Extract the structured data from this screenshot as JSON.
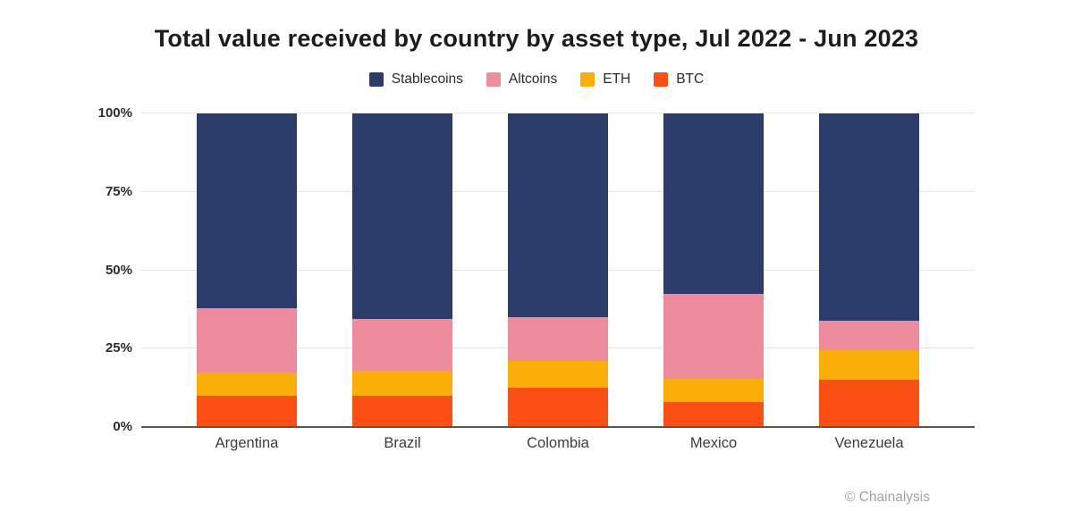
{
  "title": "Total value received by country by asset type, Jul 2022 - Jun 2023",
  "attribution": "© Chainalysis",
  "colors": {
    "stablecoins": "#2b3b6a",
    "altcoins": "#ee8c9d",
    "eth": "#fbad08",
    "btc": "#fb4f14",
    "gridline": "#e4e4e6",
    "axis": "#55565a"
  },
  "chart_data": {
    "type": "bar",
    "stacked": true,
    "title": "Total value received by country by asset type, Jul 2022 - Jun 2023",
    "categories": [
      "Argentina",
      "Brazil",
      "Colombia",
      "Mexico",
      "Venezuela"
    ],
    "series": [
      {
        "name": "Stablecoins",
        "color": "#2b3b6a",
        "values": [
          62,
          65.5,
          65,
          57.5,
          66
        ]
      },
      {
        "name": "Altcoins",
        "color": "#ee8c9d",
        "values": [
          20.5,
          16.5,
          14,
          27,
          9.5
        ]
      },
      {
        "name": "ETH",
        "color": "#fbad08",
        "values": [
          7.5,
          8,
          8.5,
          7.5,
          9.5
        ]
      },
      {
        "name": "BTC",
        "color": "#fb4f14",
        "values": [
          10,
          10,
          12.5,
          8,
          15
        ]
      }
    ],
    "stack_order_top_to_bottom": [
      "Stablecoins",
      "Altcoins",
      "ETH",
      "BTC"
    ],
    "xlabel": "",
    "ylabel": "",
    "ylim": [
      0,
      100
    ],
    "yticks": [
      0,
      25,
      50,
      75,
      100
    ],
    "ytick_labels": [
      "0%",
      "25%",
      "50%",
      "75%",
      "100%"
    ],
    "unit": "percent",
    "legend_position": "top",
    "grid": "horizontal"
  }
}
